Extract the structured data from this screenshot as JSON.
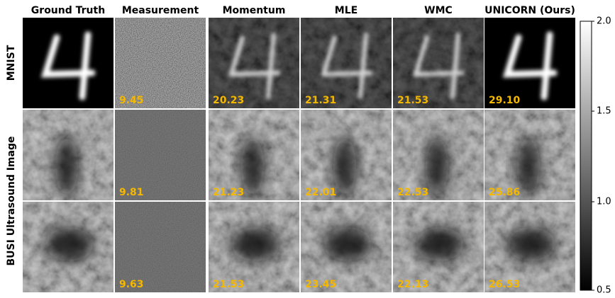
{
  "header": {
    "columns": [
      "Ground Truth",
      "Measurement",
      "Momentum",
      "MLE",
      "WMC",
      "UNICORN (Ours)"
    ]
  },
  "row_labels": [
    "MNIST",
    "BUSI Ultrasound Image"
  ],
  "rows": [
    {
      "scores": [
        "9.45",
        "20.23",
        "21.31",
        "21.53",
        "29.10"
      ]
    },
    {
      "scores": [
        "9.81",
        "21.23",
        "22.01",
        "22.53",
        "25.86"
      ]
    },
    {
      "scores": [
        "9.63",
        "21.53",
        "23.45",
        "22.13",
        "26.53"
      ]
    }
  ],
  "colorbar": {
    "ticks": [
      "2.0",
      "1.5",
      "1.0",
      "0.5"
    ]
  }
}
